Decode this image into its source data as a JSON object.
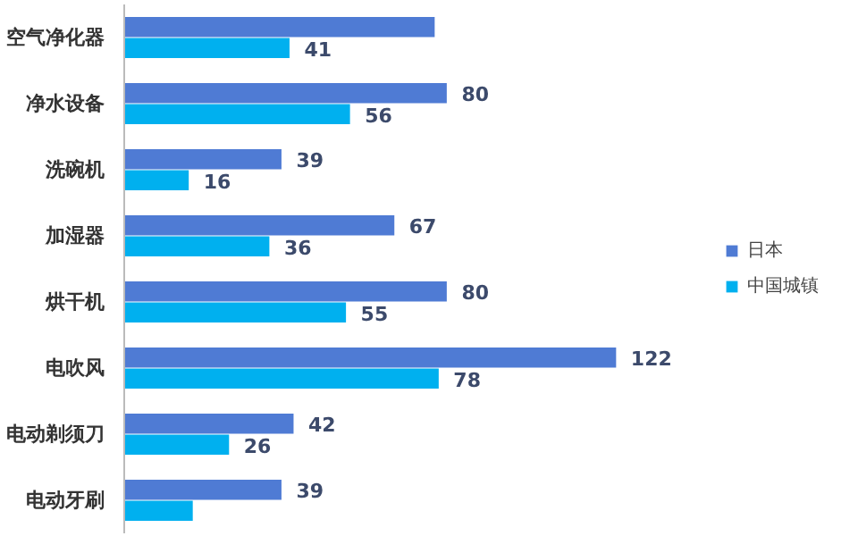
{
  "chart_data": {
    "type": "bar",
    "orientation": "horizontal",
    "categories": [
      "空气净化器",
      "净水设备",
      "洗碗机",
      "加湿器",
      "烘干机",
      "电吹风",
      "电动剃须刀",
      "电动牙刷"
    ],
    "series": [
      {
        "name": "日本",
        "color": "#4f7bd4",
        "values": [
          77,
          80,
          39,
          67,
          80,
          122,
          42,
          39
        ],
        "value_labels": [
          null,
          "80",
          "39",
          "67",
          "80",
          "122",
          "42",
          "39"
        ]
      },
      {
        "name": "中国城镇",
        "color": "#00b0ef",
        "values": [
          41,
          56,
          16,
          36,
          55,
          78,
          26,
          17
        ],
        "value_labels": [
          "41",
          "56",
          "16",
          "36",
          "55",
          "78",
          "26",
          null
        ]
      }
    ],
    "legend": "right",
    "grid": false
  }
}
